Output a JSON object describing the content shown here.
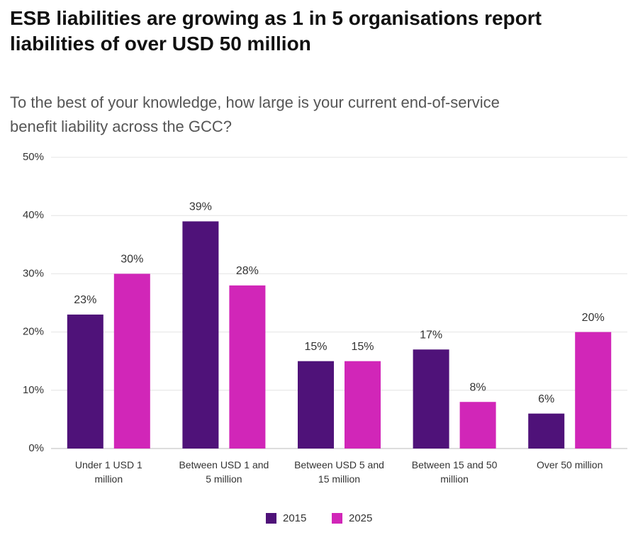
{
  "chart_data": {
    "type": "bar",
    "title": "ESB liabilities are growing as 1 in 5 organisations report liabilities of over USD 50 million",
    "subtitle": "To the best of your knowledge, how large is your current end-of-service benefit liability across the GCC?",
    "categories": [
      "Under 1 USD 1 million",
      "Between USD 1 and 5 million",
      "Between USD 5 and 15 million",
      "Between 15 and 50 million",
      "Over 50 million"
    ],
    "series": [
      {
        "name": "2015",
        "color": "#4f1279",
        "values": [
          23,
          39,
          15,
          17,
          6
        ],
        "value_labels": [
          "23%",
          "39%",
          "15%",
          "17%",
          "6%"
        ]
      },
      {
        "name": "2025",
        "color": "#d126b8",
        "values": [
          30,
          28,
          15,
          8,
          20
        ],
        "value_labels": [
          "30%",
          "28%",
          "15%",
          "8%",
          "20%"
        ]
      }
    ],
    "ylim": [
      0,
      50
    ],
    "yticks": [
      {
        "value": 0,
        "label": "0%"
      },
      {
        "value": 10,
        "label": "10%"
      },
      {
        "value": 20,
        "label": "20%"
      },
      {
        "value": 30,
        "label": "30%"
      },
      {
        "value": 40,
        "label": "40%"
      },
      {
        "value": 50,
        "label": "50%"
      }
    ],
    "grid": true,
    "legend": "bottom"
  }
}
